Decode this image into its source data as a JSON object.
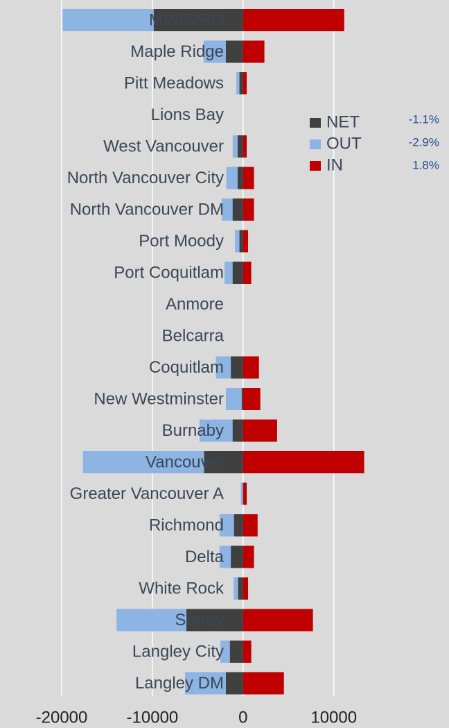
{
  "chart_data": {
    "type": "bar",
    "orientation": "horizontal",
    "overlap": true,
    "categories": [
      "MV/FVRD",
      "Maple Ridge",
      "Pitt Meadows",
      "Lions Bay",
      "West Vancouver",
      "North Vancouver City",
      "North Vancouver DM",
      "Port Moody",
      "Port Coquitlam",
      "Anmore",
      "Belcarra",
      "Coquitlam",
      "New Westminster",
      "Burnaby",
      "Vancouver",
      "Greater Vancouver A",
      "Richmond",
      "Delta",
      "White Rock",
      "Surrey",
      "Langley City",
      "Langley DM"
    ],
    "series": [
      {
        "name": "OUT",
        "color": "#8db4e2",
        "values": [
          -19900,
          -4350,
          -750,
          0,
          -1150,
          -1850,
          -2350,
          -900,
          -2050,
          0,
          0,
          -3000,
          -1900,
          -4800,
          -17650,
          -250,
          -2600,
          -2600,
          -1050,
          -13950,
          -2500,
          -6400
        ]
      },
      {
        "name": "NET",
        "color": "#404040",
        "values": [
          -9850,
          -1900,
          -400,
          0,
          -600,
          -600,
          -1150,
          -400,
          -1150,
          0,
          0,
          -1350,
          -150,
          -1150,
          -4300,
          150,
          -1000,
          -1350,
          -550,
          -6250,
          -1450,
          -1900
        ]
      },
      {
        "name": "IN",
        "color": "#c00000",
        "values": [
          11150,
          2350,
          400,
          0,
          400,
          1200,
          1200,
          550,
          900,
          0,
          0,
          1750,
          1900,
          3750,
          13350,
          400,
          1600,
          1200,
          550,
          7700,
          900,
          4500
        ]
      }
    ],
    "legend_order": [
      "NET",
      "OUT",
      "IN"
    ],
    "annotations": [
      "-1.1%",
      "-2.9%",
      "1.8%"
    ],
    "xlim": [
      -26800,
      22700
    ],
    "xticks": [
      -20000,
      -10000,
      0,
      10000
    ],
    "grid": true
  }
}
